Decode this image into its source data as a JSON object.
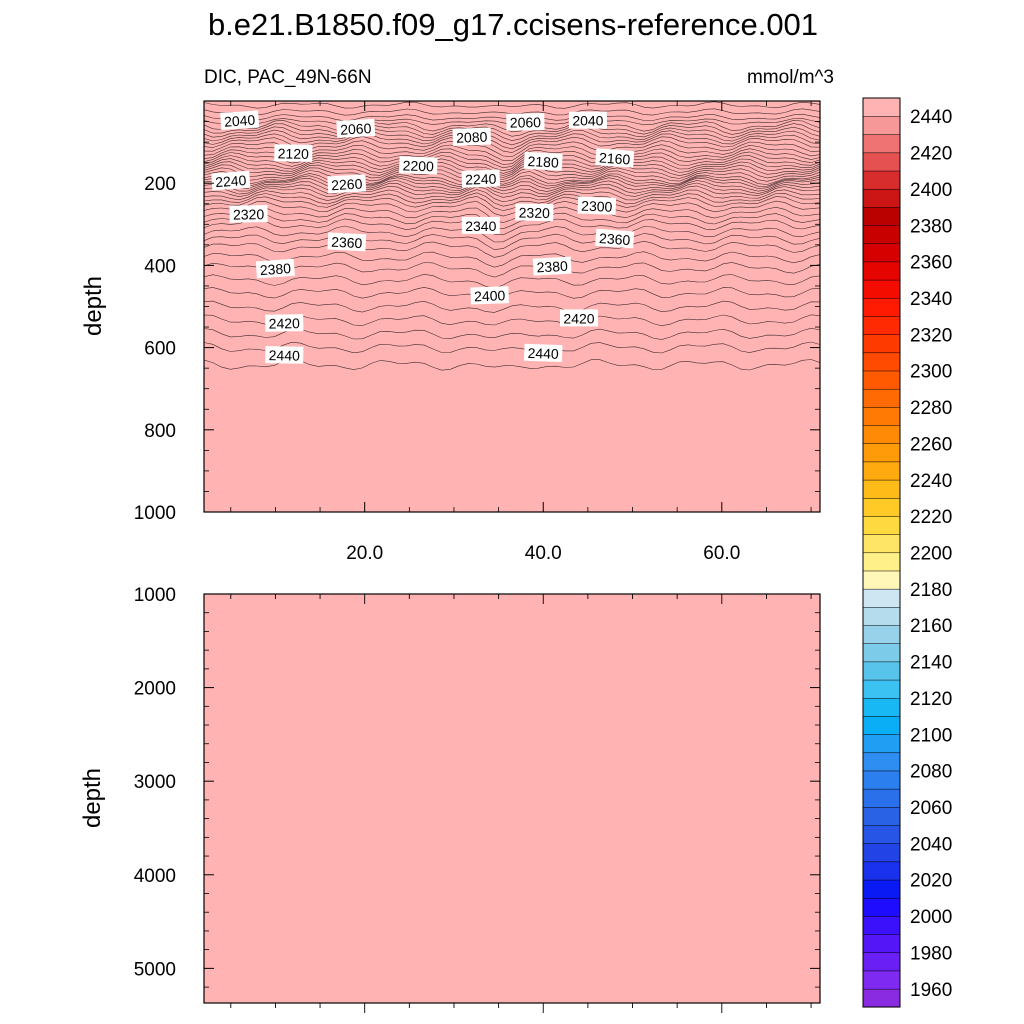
{
  "chart_data": {
    "type": "contour",
    "title": "b.e21.B1850.f09_g17.ccisens-reference.001",
    "variable_label": "DIC, PAC_49N-66N",
    "units": "mmol/m^3",
    "colorbar": {
      "min": 1950,
      "max": 2460,
      "step": 10,
      "tick_labels": [
        "2440",
        "2420",
        "2400",
        "2380",
        "2360",
        "2340",
        "2320",
        "2300",
        "2280",
        "2260",
        "2240",
        "2220",
        "2200",
        "2180",
        "2160",
        "2140",
        "2120",
        "2100",
        "2080",
        "2060",
        "2040",
        "2020",
        "2000",
        "1980",
        "1960"
      ],
      "colors": [
        "#8a2be2",
        "#7f2af0",
        "#6a1ff5",
        "#5416f7",
        "#3b10fb",
        "#1d0cfe",
        "#0a1af5",
        "#1a32ee",
        "#2244e6",
        "#2755e5",
        "#2a62e6",
        "#2a70ea",
        "#2c7fee",
        "#2f8ef1",
        "#1f9ef4",
        "#0aaef7",
        "#18b8f5",
        "#3cc2f2",
        "#58c4ec",
        "#7ccbe8",
        "#98d2ea",
        "#b4dcec",
        "#cde6f1",
        "#fff7b8",
        "#fff089",
        "#ffe566",
        "#ffd940",
        "#ffca26",
        "#ffbb17",
        "#ffaa0e",
        "#ff9a09",
        "#ff8a06",
        "#ff7a04",
        "#ff6a03",
        "#ff5a02",
        "#ff4a02",
        "#ff3a01",
        "#ff2a01",
        "#ff1a01",
        "#f50c00",
        "#e60400",
        "#d60000",
        "#c80000",
        "#bb0000",
        "#cc1616",
        "#d82d2d",
        "#e55050",
        "#ef7373",
        "#f79898",
        "#ffb3b3"
      ]
    },
    "panels": [
      {
        "name": "upper",
        "ylabel": "depth",
        "xlim": [
          2,
          71
        ],
        "ylim": [
          1000,
          0
        ],
        "xticks": [
          20,
          40,
          60
        ],
        "xtick_labels": [
          "20.0",
          "40.0",
          "60.0"
        ],
        "yticks": [
          200,
          400,
          600,
          800,
          1000
        ],
        "ytick_labels": [
          "200",
          "400",
          "600",
          "800",
          "1000"
        ],
        "profile": {
          "depths": [
            0,
            20,
            40,
            60,
            80,
            100,
            125,
            150,
            175,
            190,
            200,
            220,
            250,
            300,
            350,
            400,
            450,
            500,
            550,
            600,
            650,
            680,
            700,
            1000
          ],
          "values": [
            2005,
            2015,
            2030,
            2050,
            2075,
            2100,
            2125,
            2155,
            2190,
            2210,
            2230,
            2260,
            2295,
            2330,
            2358,
            2378,
            2395,
            2410,
            2425,
            2440,
            2452,
            2460,
            2460,
            2460
          ]
        },
        "contour_labels": [
          {
            "text": "2040",
            "x": 6,
            "depth": 48
          },
          {
            "text": "2060",
            "x": 19,
            "depth": 68
          },
          {
            "text": "2080",
            "x": 32,
            "depth": 88
          },
          {
            "text": "2060",
            "x": 38,
            "depth": 52
          },
          {
            "text": "2040",
            "x": 45,
            "depth": 48
          },
          {
            "text": "2120",
            "x": 12,
            "depth": 128
          },
          {
            "text": "2200",
            "x": 26,
            "depth": 158
          },
          {
            "text": "2180",
            "x": 40,
            "depth": 148
          },
          {
            "text": "2160",
            "x": 48,
            "depth": 140
          },
          {
            "text": "2240",
            "x": 5,
            "depth": 195
          },
          {
            "text": "2260",
            "x": 18,
            "depth": 203
          },
          {
            "text": "2240",
            "x": 33,
            "depth": 190
          },
          {
            "text": "2320",
            "x": 7,
            "depth": 276
          },
          {
            "text": "2340",
            "x": 33,
            "depth": 304
          },
          {
            "text": "2320",
            "x": 39,
            "depth": 272
          },
          {
            "text": "2300",
            "x": 46,
            "depth": 256
          },
          {
            "text": "2360",
            "x": 18,
            "depth": 344
          },
          {
            "text": "2360",
            "x": 48,
            "depth": 336
          },
          {
            "text": "2380",
            "x": 10,
            "depth": 409
          },
          {
            "text": "2380",
            "x": 41,
            "depth": 403
          },
          {
            "text": "2400",
            "x": 34,
            "depth": 474
          },
          {
            "text": "2420",
            "x": 11,
            "depth": 541
          },
          {
            "text": "2420",
            "x": 44,
            "depth": 529
          },
          {
            "text": "2440",
            "x": 11,
            "depth": 619
          },
          {
            "text": "2440",
            "x": 40,
            "depth": 614
          }
        ]
      },
      {
        "name": "lower",
        "ylabel": "depth",
        "xlim": [
          2,
          71
        ],
        "ylim": [
          5370,
          1000
        ],
        "yticks": [
          1000,
          2000,
          3000,
          4000,
          5000
        ],
        "ytick_labels": [
          "1000",
          "2000",
          "3000",
          "4000",
          "5000"
        ],
        "fill_value": 2460
      }
    ]
  }
}
